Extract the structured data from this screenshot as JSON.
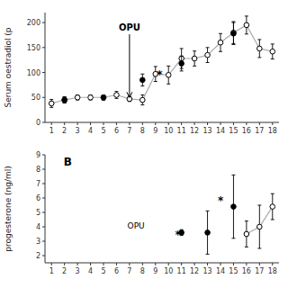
{
  "chart_data": [
    {
      "type": "line",
      "ylabel": "Serum oestradiol (p",
      "xlim": [
        0.5,
        18.5
      ],
      "ylim": [
        0,
        220
      ],
      "xticks": [
        1,
        2,
        3,
        4,
        5,
        6,
        7,
        8,
        9,
        10,
        11,
        12,
        13,
        14,
        15,
        16,
        17,
        18
      ],
      "yticks": [
        0,
        50,
        100,
        150,
        200
      ],
      "grid": false,
      "series": [
        {
          "type": "line",
          "marker": "open-circle",
          "color": "#aaaaaa",
          "x": [
            1,
            2,
            3,
            4,
            5,
            6,
            7,
            8,
            9,
            10,
            11,
            12,
            13,
            14,
            15,
            16,
            17,
            18
          ],
          "values": [
            38,
            45,
            50,
            50,
            50,
            55,
            47,
            45,
            97,
            95,
            128,
            128,
            135,
            160,
            180,
            195,
            148,
            142
          ],
          "errors": [
            8,
            6,
            5,
            5,
            5,
            7,
            5,
            10,
            15,
            18,
            20,
            15,
            15,
            18,
            22,
            18,
            18,
            15
          ]
        },
        {
          "type": "scatter",
          "marker": "filled-circle",
          "color": "#000000",
          "x": [
            2,
            5,
            8,
            11,
            15
          ],
          "values": [
            45,
            50,
            85,
            118,
            178
          ],
          "errors": [
            6,
            5,
            12,
            15,
            22
          ]
        }
      ],
      "annotations": [
        {
          "text": "*",
          "x": 9.1,
          "y": 100
        },
        {
          "text": "OPU",
          "x": 7,
          "y": 200,
          "arrow_x": 7,
          "arrow_y": 50
        }
      ]
    },
    {
      "type": "line",
      "ylabel": "progesterone (ng/ml)",
      "xlim": [
        0.5,
        18.5
      ],
      "ylim": [
        1.5,
        9
      ],
      "xticks": [
        1,
        2,
        3,
        4,
        5,
        6,
        7,
        8,
        9,
        10,
        11,
        12,
        13,
        14,
        15,
        16,
        17,
        18
      ],
      "yticks": [
        2,
        3,
        4,
        5,
        6,
        7,
        8,
        9
      ],
      "grid": false,
      "series": [
        {
          "type": "line",
          "marker": "open-circle",
          "color": "#aaaaaa",
          "x": [
            16,
            17,
            18
          ],
          "values": [
            3.5,
            4.0,
            5.4
          ],
          "errors": [
            0.9,
            1.5,
            0.9
          ]
        },
        {
          "type": "scatter",
          "marker": "filled-circle",
          "color": "#000000",
          "x": [
            11,
            13,
            15
          ],
          "values": [
            3.6,
            3.6,
            5.4
          ],
          "errors": [
            0.2,
            1.5,
            2.2
          ]
        }
      ],
      "annotations": [
        {
          "text": "*",
          "x": 10.5,
          "y": 3.55
        },
        {
          "text": "*",
          "x": 13.8,
          "y": 5.95
        },
        {
          "text": "OPU",
          "x": 7.5,
          "y": 3.9
        },
        {
          "text": "B"
        }
      ]
    }
  ]
}
